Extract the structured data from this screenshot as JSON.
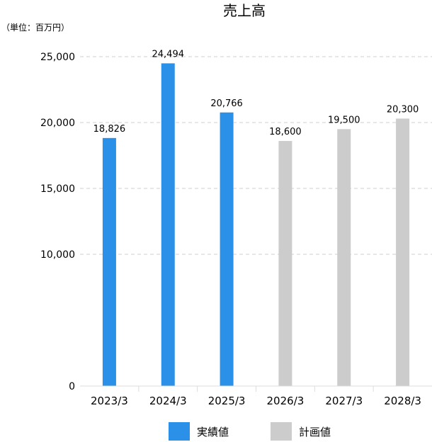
{
  "chart_data": {
    "type": "bar",
    "title": "売上高",
    "unit_label": "（単位：百万円）",
    "categories": [
      "2023/3",
      "2024/3",
      "2025/3",
      "2026/3",
      "2027/3",
      "2028/3"
    ],
    "values": [
      18826,
      24494,
      20766,
      18600,
      19500,
      20300
    ],
    "value_labels": [
      "18,826",
      "24,494",
      "20,766",
      "18,600",
      "19,500",
      "20,300"
    ],
    "bar_kind": [
      "actual",
      "actual",
      "actual",
      "plan",
      "plan",
      "plan"
    ],
    "ylim": [
      0,
      25000
    ],
    "yticks": [
      0,
      10000,
      15000,
      20000,
      25000
    ],
    "ytick_labels": [
      "0",
      "10,000",
      "15,000",
      "20,000",
      "25,000"
    ],
    "grid": true,
    "legend_position": "bottom",
    "legend": [
      {
        "key": "actual",
        "label": "実績値",
        "color": "#2b90e8"
      },
      {
        "key": "plan",
        "label": "計画値",
        "color": "#cccccc"
      }
    ]
  }
}
